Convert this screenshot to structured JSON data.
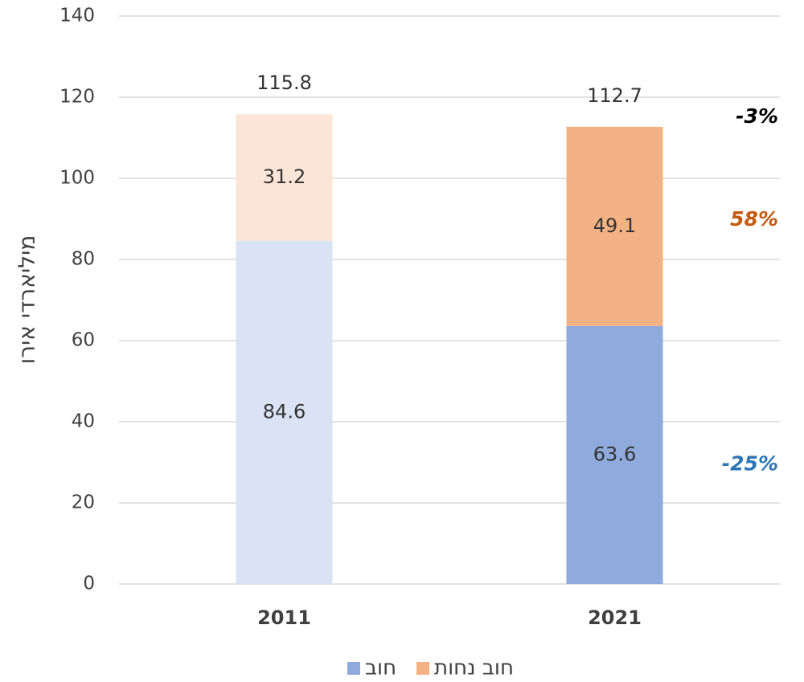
{
  "chart_data": {
    "type": "stacked_bar",
    "y_axis_label": "מיליארדי אירו",
    "categories": [
      "2011",
      "2021"
    ],
    "series": [
      {
        "name": "חוב",
        "color": "#8faadc",
        "colors": [
          "#dae3f3",
          "#8faadc"
        ],
        "values": [
          84.6,
          63.6
        ]
      },
      {
        "name": "חוב נחות",
        "color": "#f4b183",
        "colors": [
          "#fbe5d6",
          "#f4b183"
        ],
        "values": [
          31.2,
          49.1
        ]
      }
    ],
    "totals": [
      115.8,
      112.7
    ],
    "annotations": [
      {
        "text": "-3%",
        "color": "#000000"
      },
      {
        "text": "58%",
        "color": "#c55a11"
      },
      {
        "text": "-25%",
        "color": "#2e75b6"
      }
    ],
    "ylim": [
      0,
      140
    ],
    "yticks": [
      0,
      20,
      40,
      60,
      80,
      100,
      120,
      140
    ],
    "grid": true,
    "legend": "bottom"
  }
}
